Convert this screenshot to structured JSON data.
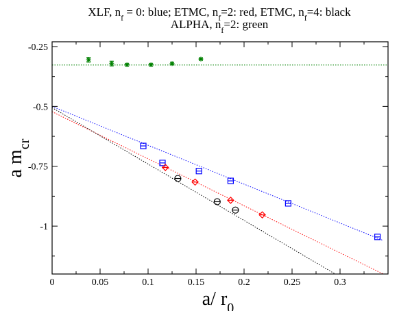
{
  "chart_data": {
    "type": "scatter",
    "title": "XLF, n_f = 0: blue; ETMC, n_f=2: red, ETMC, n_f=4: black / ALPHA, n_f=2: green",
    "title_line1": [
      {
        "t": "XLF, n"
      },
      {
        "t": "f",
        "sub": true
      },
      {
        "t": " = 0:  blue;    ETMC, n"
      },
      {
        "t": "f",
        "sub": true
      },
      {
        "t": "=2: red,   ETMC, n"
      },
      {
        "t": "f",
        "sub": true
      },
      {
        "t": "=4: black"
      }
    ],
    "title_line2": [
      {
        "t": "ALPHA, n"
      },
      {
        "t": "f",
        "sub": true
      },
      {
        "t": "=2: green"
      }
    ],
    "xlabel": "a/ r",
    "xlabel_sub": "0",
    "ylabel": "a m",
    "ylabel_sub": "cr",
    "xlim": [
      0,
      0.35
    ],
    "ylim": [
      -1.2,
      -0.23
    ],
    "xticks": [
      {
        "v": 0,
        "label": "0"
      },
      {
        "v": 0.05,
        "label": "0.05"
      },
      {
        "v": 0.1,
        "label": "0.1"
      },
      {
        "v": 0.15,
        "label": "0.15"
      },
      {
        "v": 0.2,
        "label": "0.2"
      },
      {
        "v": 0.25,
        "label": "0.25"
      },
      {
        "v": 0.3,
        "label": "0.3"
      }
    ],
    "yticks": [
      {
        "v": -0.25,
        "label": "-0.25"
      },
      {
        "v": -0.5,
        "label": "-0.5"
      },
      {
        "v": -0.75,
        "label": "-0.75"
      },
      {
        "v": -1,
        "label": "-1"
      }
    ],
    "grid": false,
    "series": [
      {
        "color": "#0000ff",
        "marker": "square",
        "x": [
          0.095,
          0.115,
          0.153,
          0.186,
          0.246,
          0.339
        ],
        "y": [
          -0.665,
          -0.736,
          -0.77,
          -0.811,
          -0.905,
          -1.045
        ],
        "fit": {
          "x0": 0.0,
          "y0": -0.5,
          "x1": 0.345,
          "y1": -1.06
        }
      },
      {
        "color": "#ff0000",
        "marker": "diamond",
        "x": [
          0.118,
          0.149,
          0.186,
          0.219
        ],
        "y": [
          -0.755,
          -0.816,
          -0.892,
          -0.953
        ],
        "fit": {
          "x0": 0.0,
          "y0": -0.522,
          "x1": 0.345,
          "y1": -1.2
        }
      },
      {
        "color": "#000000",
        "marker": "circle",
        "x": [
          0.131,
          0.172,
          0.191
        ],
        "y": [
          -0.801,
          -0.898,
          -0.933
        ],
        "fit": {
          "x0": 0.0,
          "y0": -0.505,
          "x1": 0.295,
          "y1": -1.2
        }
      },
      {
        "color": "#008000",
        "marker": "star",
        "x": [
          0.038,
          0.062,
          0.078,
          0.103,
          0.125,
          0.155
        ],
        "y": [
          -0.305,
          -0.321,
          -0.326,
          -0.326,
          -0.321,
          -0.302
        ],
        "yerr": [
          0.01,
          0.01,
          0.005,
          0.005,
          0.005,
          0.004
        ],
        "hline": -0.327
      }
    ]
  }
}
